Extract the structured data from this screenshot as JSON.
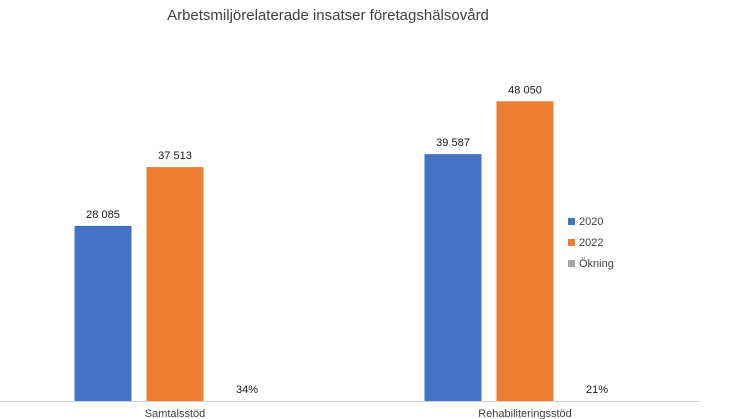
{
  "chart_data": {
    "type": "bar",
    "title": "Arbetsmiljörelaterade insatser företagshälsovård",
    "categories": [
      "Samtalsstöd",
      "Rehabiliteringsstöd"
    ],
    "series": [
      {
        "name": "2020",
        "color": "#4472C4",
        "values": [
          28085,
          39587
        ],
        "labels": [
          "28 085",
          "39 587"
        ]
      },
      {
        "name": "2022",
        "color": "#ED7D31",
        "values": [
          37513,
          48050
        ],
        "labels": [
          "37 513",
          "48 050"
        ]
      },
      {
        "name": "Ökning",
        "color": "#A5A5A5",
        "values": [
          0.34,
          0.21
        ],
        "labels": [
          "34%",
          "21%"
        ]
      }
    ],
    "xlabel": "",
    "ylabel": "",
    "ylim": [
      0,
      55000
    ],
    "grid": false,
    "legend_position": "right"
  }
}
